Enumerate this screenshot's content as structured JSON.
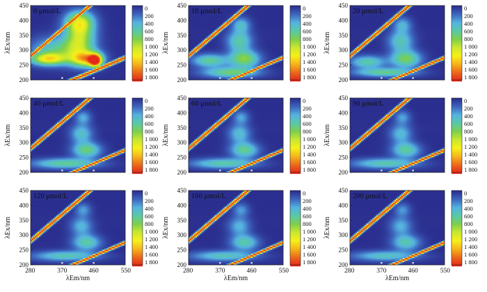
{
  "chart_data": [
    {
      "type": "heatmap",
      "title": "0 μmol/L",
      "xlabel": "",
      "ylabel": "λEx/nm",
      "x_ticks": [],
      "y_ticks": [
        "200",
        "250",
        "300",
        "350",
        "400",
        "450"
      ],
      "xlim": [
        280,
        550
      ],
      "ylim": [
        200,
        450
      ],
      "colorbar": {
        "ticks": [
          "0",
          "200",
          "400",
          "600",
          "800",
          "1 000",
          "1 200",
          "1 400",
          "1 600",
          "1 800"
        ],
        "range": [
          0,
          1800
        ],
        "colors": [
          "#2b2f8f",
          "#3d66bf",
          "#55b3e0",
          "#59c9a6",
          "#7ecf4c",
          "#c9e82e",
          "#f7f018",
          "#f5b51b",
          "#ec6a1a",
          "#e5281a"
        ]
      },
      "peaks": [
        {
          "x": 465,
          "y": 265,
          "value": 1700,
          "sx": 12,
          "sy": 14
        },
        {
          "x": 440,
          "y": 270,
          "value": 1150,
          "sx": 30,
          "sy": 18
        },
        {
          "x": 330,
          "y": 270,
          "value": 1000,
          "sx": 35,
          "sy": 14
        },
        {
          "x": 420,
          "y": 340,
          "value": 850,
          "sx": 30,
          "sy": 45
        },
        {
          "x": 420,
          "y": 395,
          "value": 800,
          "sx": 28,
          "sy": 25
        },
        {
          "x": 360,
          "y": 300,
          "value": 600,
          "sx": 55,
          "sy": 30
        }
      ],
      "scatter_bands": [
        {
          "slope": 1,
          "offset": 0,
          "width": 7,
          "value": 1800
        },
        {
          "slope": 0.5,
          "offset": 0,
          "width": 6,
          "value": 1800
        }
      ]
    },
    {
      "type": "heatmap",
      "title": "10 μmol/L",
      "xlabel": "",
      "ylabel": "λEx/nm",
      "x_ticks": [],
      "y_ticks": [
        "200",
        "250",
        "300",
        "350",
        "400",
        "450"
      ],
      "xlim": [
        280,
        550
      ],
      "ylim": [
        200,
        450
      ],
      "colorbar": {
        "ticks": [
          "0",
          "200",
          "400",
          "600",
          "800",
          "1 000",
          "1 200",
          "1 400",
          "1 600",
          "1 800"
        ],
        "range": [
          0,
          1800
        ],
        "colors": [
          "#2b2f8f",
          "#3d66bf",
          "#55b3e0",
          "#59c9a6",
          "#7ecf4c",
          "#c9e82e",
          "#f7f018",
          "#f5b51b",
          "#ec6a1a",
          "#e5281a"
        ]
      },
      "peaks": [
        {
          "x": 440,
          "y": 270,
          "value": 800,
          "sx": 30,
          "sy": 20
        },
        {
          "x": 340,
          "y": 265,
          "value": 650,
          "sx": 35,
          "sy": 15
        },
        {
          "x": 400,
          "y": 225,
          "value": 700,
          "sx": 55,
          "sy": 12
        },
        {
          "x": 425,
          "y": 330,
          "value": 600,
          "sx": 25,
          "sy": 25
        },
        {
          "x": 430,
          "y": 385,
          "value": 450,
          "sx": 18,
          "sy": 18
        }
      ],
      "scatter_bands": [
        {
          "slope": 1,
          "offset": 0,
          "width": 7,
          "value": 1800
        },
        {
          "slope": 0.5,
          "offset": 0,
          "width": 5,
          "value": 1800
        }
      ]
    },
    {
      "type": "heatmap",
      "title": "20 μmol/L",
      "xlabel": "",
      "ylabel": "λEx/nm",
      "x_ticks": [],
      "y_ticks": [
        "200",
        "250",
        "300",
        "350",
        "400",
        "450"
      ],
      "xlim": [
        280,
        550
      ],
      "ylim": [
        200,
        450
      ],
      "colorbar": {
        "ticks": [
          "0",
          "200",
          "400",
          "600",
          "800",
          "1 000",
          "1 200",
          "1 400",
          "1 600",
          "1 800"
        ],
        "range": [
          0,
          1800
        ],
        "colors": [
          "#2b2f8f",
          "#3d66bf",
          "#55b3e0",
          "#59c9a6",
          "#7ecf4c",
          "#c9e82e",
          "#f7f018",
          "#f5b51b",
          "#ec6a1a",
          "#e5281a"
        ]
      },
      "peaks": [
        {
          "x": 440,
          "y": 270,
          "value": 750,
          "sx": 30,
          "sy": 20
        },
        {
          "x": 330,
          "y": 260,
          "value": 600,
          "sx": 35,
          "sy": 15
        },
        {
          "x": 380,
          "y": 225,
          "value": 650,
          "sx": 60,
          "sy": 10
        },
        {
          "x": 425,
          "y": 330,
          "value": 550,
          "sx": 25,
          "sy": 25
        },
        {
          "x": 430,
          "y": 385,
          "value": 400,
          "sx": 18,
          "sy": 18
        }
      ],
      "scatter_bands": [
        {
          "slope": 1,
          "offset": 0,
          "width": 7,
          "value": 1800
        },
        {
          "slope": 0.5,
          "offset": 0,
          "width": 5,
          "value": 1800
        }
      ]
    },
    {
      "type": "heatmap",
      "title": "40 μmol/L",
      "xlabel": "",
      "ylabel": "λEx/nm",
      "x_ticks": [],
      "y_ticks": [
        "200",
        "250",
        "300",
        "350",
        "400",
        "450"
      ],
      "xlim": [
        280,
        550
      ],
      "ylim": [
        200,
        450
      ],
      "colorbar": {
        "ticks": [
          "0",
          "200",
          "400",
          "600",
          "800",
          "1 000",
          "1 200",
          "1 400",
          "1 600",
          "1 800"
        ],
        "range": [
          0,
          1800
        ],
        "colors": [
          "#2b2f8f",
          "#3d66bf",
          "#55b3e0",
          "#59c9a6",
          "#7ecf4c",
          "#c9e82e",
          "#f7f018",
          "#f5b51b",
          "#ec6a1a",
          "#e5281a"
        ]
      },
      "peaks": [
        {
          "x": 440,
          "y": 275,
          "value": 700,
          "sx": 28,
          "sy": 18
        },
        {
          "x": 380,
          "y": 230,
          "value": 650,
          "sx": 65,
          "sy": 12
        },
        {
          "x": 425,
          "y": 330,
          "value": 500,
          "sx": 22,
          "sy": 22
        },
        {
          "x": 430,
          "y": 385,
          "value": 380,
          "sx": 16,
          "sy": 16
        }
      ],
      "scatter_bands": [
        {
          "slope": 1,
          "offset": 0,
          "width": 7,
          "value": 1800
        },
        {
          "slope": 0.5,
          "offset": 0,
          "width": 5,
          "value": 1800
        }
      ]
    },
    {
      "type": "heatmap",
      "title": "60 μmol/L",
      "xlabel": "",
      "ylabel": "λEx/nm",
      "x_ticks": [],
      "y_ticks": [
        "200",
        "250",
        "300",
        "350",
        "400",
        "450"
      ],
      "xlim": [
        280,
        550
      ],
      "ylim": [
        200,
        450
      ],
      "colorbar": {
        "ticks": [
          "0",
          "200",
          "400",
          "600",
          "800",
          "1 000",
          "1 200",
          "1 400",
          "1 600",
          "1 800"
        ],
        "range": [
          0,
          1800
        ],
        "colors": [
          "#2b2f8f",
          "#3d66bf",
          "#55b3e0",
          "#59c9a6",
          "#7ecf4c",
          "#c9e82e",
          "#f7f018",
          "#f5b51b",
          "#ec6a1a",
          "#e5281a"
        ]
      },
      "peaks": [
        {
          "x": 440,
          "y": 275,
          "value": 650,
          "sx": 28,
          "sy": 18
        },
        {
          "x": 380,
          "y": 230,
          "value": 600,
          "sx": 65,
          "sy": 12
        },
        {
          "x": 425,
          "y": 330,
          "value": 470,
          "sx": 22,
          "sy": 22
        },
        {
          "x": 430,
          "y": 385,
          "value": 360,
          "sx": 16,
          "sy": 16
        }
      ],
      "scatter_bands": [
        {
          "slope": 1,
          "offset": 0,
          "width": 7,
          "value": 1800
        },
        {
          "slope": 0.5,
          "offset": 0,
          "width": 5,
          "value": 1800
        }
      ]
    },
    {
      "type": "heatmap",
      "title": "90 μmol/L",
      "xlabel": "",
      "ylabel": "λEx/nm",
      "x_ticks": [],
      "y_ticks": [
        "200",
        "250",
        "300",
        "350",
        "400",
        "450"
      ],
      "xlim": [
        280,
        550
      ],
      "ylim": [
        200,
        450
      ],
      "colorbar": {
        "ticks": [
          "0",
          "200",
          "400",
          "600",
          "800",
          "1 000",
          "1 200",
          "1 400",
          "1 600",
          "1 800"
        ],
        "range": [
          0,
          1800
        ],
        "colors": [
          "#2b2f8f",
          "#3d66bf",
          "#55b3e0",
          "#59c9a6",
          "#7ecf4c",
          "#c9e82e",
          "#f7f018",
          "#f5b51b",
          "#ec6a1a",
          "#e5281a"
        ]
      },
      "peaks": [
        {
          "x": 440,
          "y": 275,
          "value": 620,
          "sx": 28,
          "sy": 18
        },
        {
          "x": 380,
          "y": 230,
          "value": 580,
          "sx": 65,
          "sy": 12
        },
        {
          "x": 425,
          "y": 330,
          "value": 450,
          "sx": 22,
          "sy": 22
        },
        {
          "x": 430,
          "y": 385,
          "value": 350,
          "sx": 16,
          "sy": 16
        }
      ],
      "scatter_bands": [
        {
          "slope": 1,
          "offset": 0,
          "width": 7,
          "value": 1800
        },
        {
          "slope": 0.5,
          "offset": 0,
          "width": 5,
          "value": 1800
        }
      ]
    },
    {
      "type": "heatmap",
      "title": "120 μmol/L",
      "xlabel": "λEm/nm",
      "ylabel": "λEx/nm",
      "x_ticks": [
        "280",
        "370",
        "460",
        "550"
      ],
      "y_ticks": [
        "200",
        "250",
        "300",
        "350",
        "400",
        "450"
      ],
      "xlim": [
        280,
        550
      ],
      "ylim": [
        200,
        450
      ],
      "colorbar": {
        "ticks": [
          "0",
          "200",
          "400",
          "600",
          "800",
          "1 000",
          "1 200",
          "1 400",
          "1 600",
          "1 800"
        ],
        "range": [
          0,
          1800
        ],
        "colors": [
          "#2b2f8f",
          "#3d66bf",
          "#55b3e0",
          "#59c9a6",
          "#7ecf4c",
          "#c9e82e",
          "#f7f018",
          "#f5b51b",
          "#ec6a1a",
          "#e5281a"
        ]
      },
      "peaks": [
        {
          "x": 440,
          "y": 275,
          "value": 600,
          "sx": 28,
          "sy": 18
        },
        {
          "x": 380,
          "y": 230,
          "value": 560,
          "sx": 65,
          "sy": 12
        },
        {
          "x": 425,
          "y": 330,
          "value": 430,
          "sx": 22,
          "sy": 22
        },
        {
          "x": 430,
          "y": 385,
          "value": 340,
          "sx": 16,
          "sy": 16
        }
      ],
      "scatter_bands": [
        {
          "slope": 1,
          "offset": 0,
          "width": 7,
          "value": 1800
        },
        {
          "slope": 0.5,
          "offset": 0,
          "width": 5,
          "value": 1800
        }
      ]
    },
    {
      "type": "heatmap",
      "title": "160 μmol/L",
      "xlabel": "λEm/nm",
      "ylabel": "λEx/nm",
      "x_ticks": [
        "280",
        "370",
        "460",
        "550"
      ],
      "y_ticks": [
        "200",
        "250",
        "300",
        "350",
        "400",
        "450"
      ],
      "xlim": [
        280,
        550
      ],
      "ylim": [
        200,
        450
      ],
      "colorbar": {
        "ticks": [
          "0",
          "200",
          "400",
          "600",
          "800",
          "1 000",
          "1 200",
          "1 400",
          "1 600",
          "1 800"
        ],
        "range": [
          0,
          1800
        ],
        "colors": [
          "#2b2f8f",
          "#3d66bf",
          "#55b3e0",
          "#59c9a6",
          "#7ecf4c",
          "#c9e82e",
          "#f7f018",
          "#f5b51b",
          "#ec6a1a",
          "#e5281a"
        ]
      },
      "peaks": [
        {
          "x": 440,
          "y": 275,
          "value": 580,
          "sx": 28,
          "sy": 18
        },
        {
          "x": 380,
          "y": 230,
          "value": 540,
          "sx": 65,
          "sy": 12
        },
        {
          "x": 425,
          "y": 330,
          "value": 420,
          "sx": 22,
          "sy": 22
        },
        {
          "x": 430,
          "y": 385,
          "value": 330,
          "sx": 16,
          "sy": 16
        }
      ],
      "scatter_bands": [
        {
          "slope": 1,
          "offset": 0,
          "width": 7,
          "value": 1800
        },
        {
          "slope": 0.5,
          "offset": 0,
          "width": 5,
          "value": 1800
        }
      ]
    },
    {
      "type": "heatmap",
      "title": "200 μmol/L",
      "xlabel": "λEm/nm",
      "ylabel": "λEx/nm",
      "x_ticks": [
        "280",
        "370",
        "460",
        "550"
      ],
      "y_ticks": [
        "200",
        "250",
        "300",
        "350",
        "400",
        "450"
      ],
      "xlim": [
        280,
        550
      ],
      "ylim": [
        200,
        450
      ],
      "colorbar": {
        "ticks": [
          "0",
          "200",
          "400",
          "600",
          "800",
          "1 000",
          "1 200",
          "1 400",
          "1 600",
          "1 800"
        ],
        "range": [
          0,
          1800
        ],
        "colors": [
          "#2b2f8f",
          "#3d66bf",
          "#55b3e0",
          "#59c9a6",
          "#7ecf4c",
          "#c9e82e",
          "#f7f018",
          "#f5b51b",
          "#ec6a1a",
          "#e5281a"
        ]
      },
      "peaks": [
        {
          "x": 440,
          "y": 275,
          "value": 560,
          "sx": 28,
          "sy": 18
        },
        {
          "x": 380,
          "y": 230,
          "value": 520,
          "sx": 65,
          "sy": 12
        },
        {
          "x": 425,
          "y": 330,
          "value": 410,
          "sx": 22,
          "sy": 22
        },
        {
          "x": 430,
          "y": 385,
          "value": 320,
          "sx": 16,
          "sy": 16
        }
      ],
      "scatter_bands": [
        {
          "slope": 1,
          "offset": 0,
          "width": 7,
          "value": 1800
        },
        {
          "slope": 0.5,
          "offset": 0,
          "width": 5,
          "value": 1800
        }
      ]
    }
  ]
}
